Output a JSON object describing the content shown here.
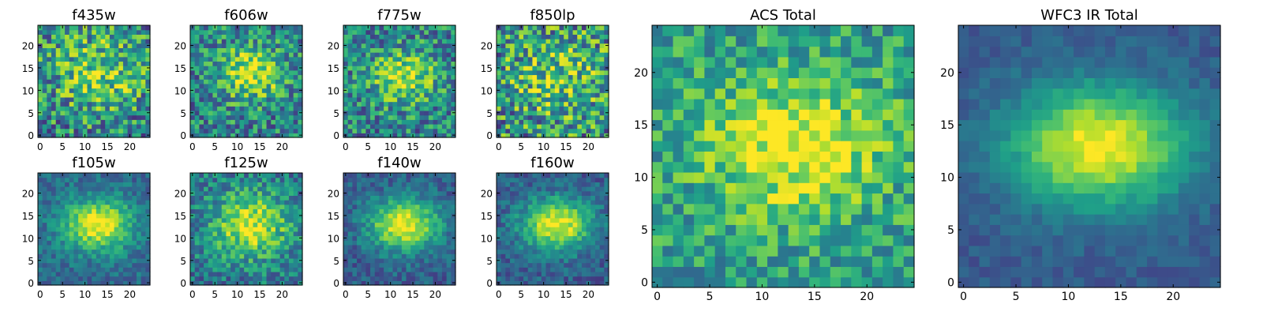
{
  "chart_data": [
    {
      "type": "heatmap",
      "title": "f435w",
      "x_ticks": [
        "0",
        "5",
        "10",
        "15",
        "20"
      ],
      "y_ticks": [
        "0",
        "5",
        "10",
        "15",
        "20"
      ],
      "xlim": [
        -0.5,
        24.5
      ],
      "ylim": [
        -0.5,
        24.5
      ],
      "grid_size": [
        25,
        25
      ],
      "colormap": "viridis",
      "center": [
        13,
        14
      ],
      "sigma": [
        7.0,
        6.0
      ],
      "peak": 0.8,
      "background": 0.45,
      "noise": 0.35,
      "seed": 11
    },
    {
      "type": "heatmap",
      "title": "f606w",
      "x_ticks": [
        "0",
        "5",
        "10",
        "15",
        "20"
      ],
      "y_ticks": [
        "0",
        "5",
        "10",
        "15",
        "20"
      ],
      "xlim": [
        -0.5,
        24.5
      ],
      "ylim": [
        -0.5,
        24.5
      ],
      "grid_size": [
        25,
        25
      ],
      "colormap": "viridis",
      "center": [
        13,
        14
      ],
      "sigma": [
        5.0,
        4.0
      ],
      "peak": 0.95,
      "background": 0.45,
      "noise": 0.3,
      "seed": 23
    },
    {
      "type": "heatmap",
      "title": "f775w",
      "x_ticks": [
        "0",
        "5",
        "10",
        "15",
        "20"
      ],
      "y_ticks": [
        "0",
        "5",
        "10",
        "15",
        "20"
      ],
      "xlim": [
        -0.5,
        24.5
      ],
      "ylim": [
        -0.5,
        24.5
      ],
      "grid_size": [
        25,
        25
      ],
      "colormap": "viridis",
      "center": [
        13,
        13
      ],
      "sigma": [
        5.0,
        4.0
      ],
      "peak": 0.9,
      "background": 0.45,
      "noise": 0.3,
      "seed": 37
    },
    {
      "type": "heatmap",
      "title": "f850lp",
      "x_ticks": [
        "0",
        "5",
        "10",
        "15",
        "20"
      ],
      "y_ticks": [
        "0",
        "5",
        "10",
        "15",
        "20"
      ],
      "xlim": [
        -0.5,
        24.5
      ],
      "ylim": [
        -0.5,
        24.5
      ],
      "grid_size": [
        25,
        25
      ],
      "colormap": "viridis",
      "center": [
        13,
        13
      ],
      "sigma": [
        7.0,
        6.0
      ],
      "peak": 0.75,
      "background": 0.5,
      "noise": 0.38,
      "seed": 41
    },
    {
      "type": "heatmap",
      "title": "f105w",
      "x_ticks": [
        "0",
        "5",
        "10",
        "15",
        "20"
      ],
      "y_ticks": [
        "0",
        "5",
        "10",
        "15",
        "20"
      ],
      "xlim": [
        -0.5,
        24.5
      ],
      "ylim": [
        -0.5,
        24.5
      ],
      "grid_size": [
        25,
        25
      ],
      "colormap": "viridis",
      "center": [
        13,
        13
      ],
      "sigma": [
        5.5,
        4.0
      ],
      "peak": 1.0,
      "background": 0.35,
      "noise": 0.14,
      "seed": 53
    },
    {
      "type": "heatmap",
      "title": "f125w",
      "x_ticks": [
        "0",
        "5",
        "10",
        "15",
        "20"
      ],
      "y_ticks": [
        "0",
        "5",
        "10",
        "15",
        "20"
      ],
      "xlim": [
        -0.5,
        24.5
      ],
      "ylim": [
        -0.5,
        24.5
      ],
      "grid_size": [
        25,
        25
      ],
      "colormap": "viridis",
      "center": [
        13,
        13
      ],
      "sigma": [
        6.0,
        5.0
      ],
      "peak": 0.95,
      "background": 0.4,
      "noise": 0.22,
      "seed": 67
    },
    {
      "type": "heatmap",
      "title": "f140w",
      "x_ticks": [
        "0",
        "5",
        "10",
        "15",
        "20"
      ],
      "y_ticks": [
        "0",
        "5",
        "10",
        "15",
        "20"
      ],
      "xlim": [
        -0.5,
        24.5
      ],
      "ylim": [
        -0.5,
        24.5
      ],
      "grid_size": [
        25,
        25
      ],
      "colormap": "viridis",
      "center": [
        13,
        13
      ],
      "sigma": [
        5.5,
        4.0
      ],
      "peak": 1.0,
      "background": 0.3,
      "noise": 0.14,
      "seed": 79
    },
    {
      "type": "heatmap",
      "title": "f160w",
      "x_ticks": [
        "0",
        "5",
        "10",
        "15",
        "20"
      ],
      "y_ticks": [
        "0",
        "5",
        "10",
        "15",
        "20"
      ],
      "xlim": [
        -0.5,
        24.5
      ],
      "ylim": [
        -0.5,
        24.5
      ],
      "grid_size": [
        25,
        25
      ],
      "colormap": "viridis",
      "center": [
        13,
        13
      ],
      "sigma": [
        5.5,
        4.0
      ],
      "peak": 1.0,
      "background": 0.3,
      "noise": 0.14,
      "seed": 83
    },
    {
      "type": "heatmap",
      "title": "ACS Total",
      "x_ticks": [
        "0",
        "5",
        "10",
        "15",
        "20"
      ],
      "y_ticks": [
        "0",
        "5",
        "10",
        "15",
        "20"
      ],
      "xlim": [
        -0.5,
        24.5
      ],
      "ylim": [
        -0.5,
        24.5
      ],
      "grid_size": [
        25,
        25
      ],
      "colormap": "viridis",
      "center": [
        13,
        13
      ],
      "sigma": [
        6.0,
        4.5
      ],
      "peak": 1.0,
      "background": 0.55,
      "noise": 0.22,
      "seed": 97
    },
    {
      "type": "heatmap",
      "title": "WFC3 IR Total",
      "x_ticks": [
        "0",
        "5",
        "10",
        "15",
        "20"
      ],
      "y_ticks": [
        "0",
        "5",
        "10",
        "15",
        "20"
      ],
      "xlim": [
        -0.5,
        24.5
      ],
      "ylim": [
        -0.5,
        24.5
      ],
      "grid_size": [
        25,
        25
      ],
      "colormap": "viridis",
      "center": [
        13,
        13
      ],
      "sigma": [
        6.0,
        4.0
      ],
      "peak": 1.0,
      "background": 0.28,
      "noise": 0.07,
      "seed": 101
    }
  ]
}
